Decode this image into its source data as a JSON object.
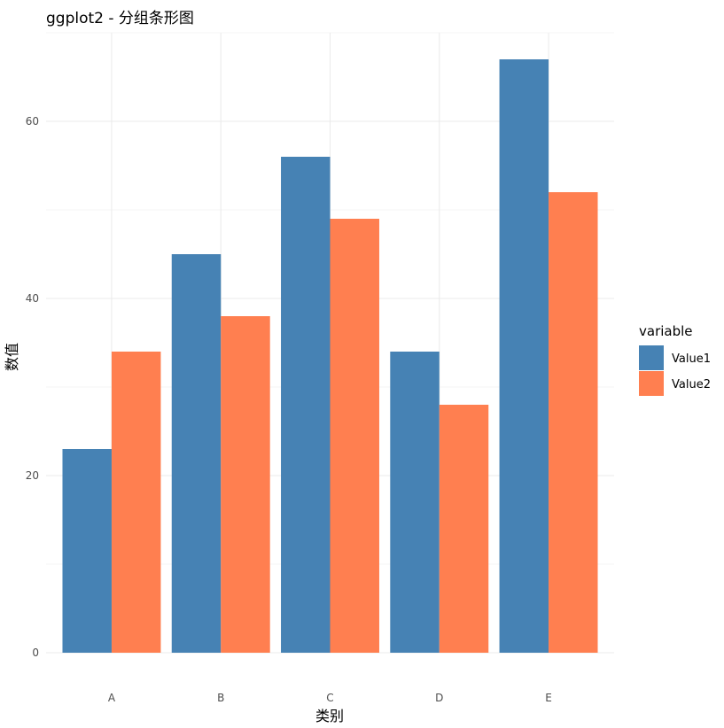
{
  "chart_data": {
    "type": "bar",
    "title": "ggplot2 - 分组条形图",
    "xlabel": "类别",
    "ylabel": "数值",
    "categories": [
      "A",
      "B",
      "C",
      "D",
      "E"
    ],
    "series": [
      {
        "name": "Value1",
        "values": [
          23,
          45,
          56,
          34,
          67
        ],
        "color": "#4682B4"
      },
      {
        "name": "Value2",
        "values": [
          34,
          38,
          49,
          28,
          52
        ],
        "color": "#FF7F50"
      }
    ],
    "ylim": [
      0,
      70
    ],
    "yticks": [
      0,
      20,
      40,
      60
    ],
    "grid": true,
    "legend": {
      "title": "variable",
      "position": "right"
    }
  }
}
